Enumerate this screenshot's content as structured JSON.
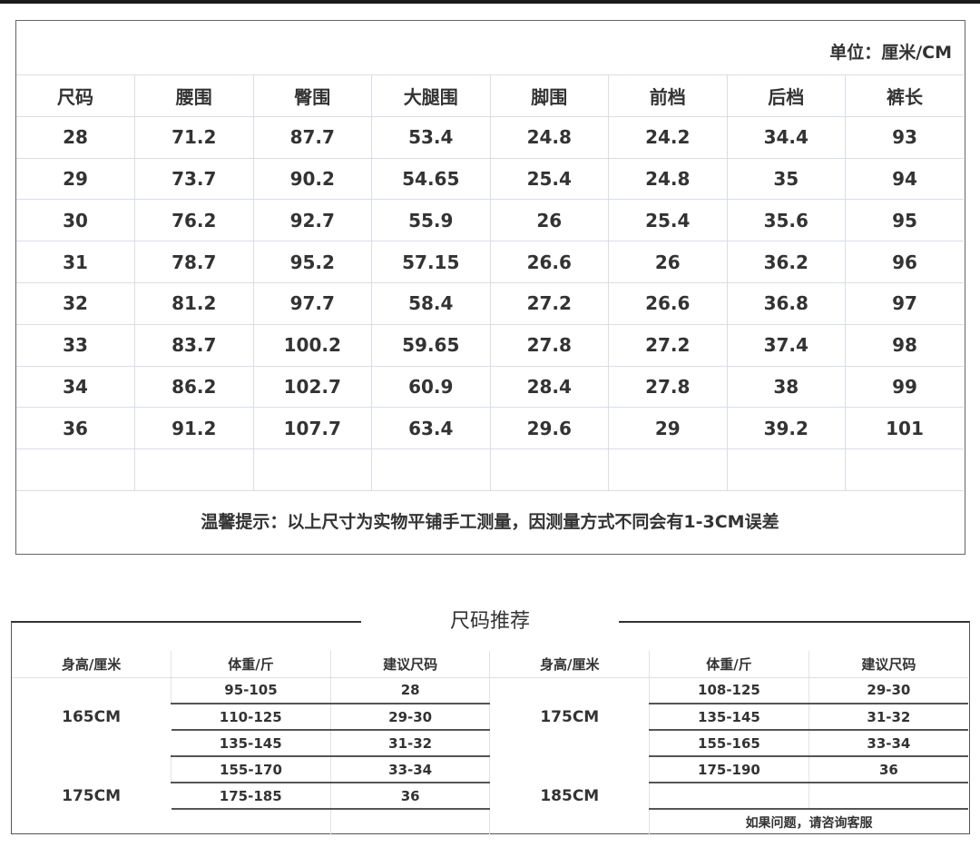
{
  "size_chart": {
    "unit": "单位：厘米/CM",
    "headers": [
      "尺码",
      "腰围",
      "臀围",
      "大腿围",
      "脚围",
      "前档",
      "后档",
      "裤长"
    ],
    "rows": [
      [
        "28",
        "71.2",
        "87.7",
        "53.4",
        "24.8",
        "24.2",
        "34.4",
        "93"
      ],
      [
        "29",
        "73.7",
        "90.2",
        "54.65",
        "25.4",
        "24.8",
        "35",
        "94"
      ],
      [
        "30",
        "76.2",
        "92.7",
        "55.9",
        "26",
        "25.4",
        "35.6",
        "95"
      ],
      [
        "31",
        "78.7",
        "95.2",
        "57.15",
        "26.6",
        "26",
        "36.2",
        "96"
      ],
      [
        "32",
        "81.2",
        "97.7",
        "58.4",
        "27.2",
        "26.6",
        "36.8",
        "97"
      ],
      [
        "33",
        "83.7",
        "100.2",
        "59.65",
        "27.8",
        "27.2",
        "37.4",
        "98"
      ],
      [
        "34",
        "86.2",
        "102.7",
        "60.9",
        "28.4",
        "27.8",
        "38",
        "99"
      ],
      [
        "36",
        "91.2",
        "107.7",
        "63.4",
        "29.6",
        "29",
        "39.2",
        "101"
      ]
    ],
    "note": "温馨提示：以上尺寸为实物平铺手工测量，因测量方式不同会有1-3CM误差"
  },
  "recommendation": {
    "title": "尺码推荐",
    "headers": [
      "身高/厘米",
      "体重/斤",
      "建议尺码",
      "身高/厘米",
      "体重/斤",
      "建议尺码"
    ],
    "left_heights": [
      "165CM",
      "175CM"
    ],
    "left_rows": [
      [
        "95-105",
        "28"
      ],
      [
        "110-125",
        "29-30"
      ],
      [
        "135-145",
        "31-32"
      ],
      [
        "155-170",
        "33-34"
      ],
      [
        "175-185",
        "36"
      ]
    ],
    "right_heights": [
      "175CM",
      "185CM"
    ],
    "right_rows": [
      [
        "108-125",
        "29-30"
      ],
      [
        "135-145",
        "31-32"
      ],
      [
        "155-165",
        "33-34"
      ],
      [
        "175-190",
        "36"
      ]
    ],
    "footer": "如果问题，请咨询客服"
  }
}
